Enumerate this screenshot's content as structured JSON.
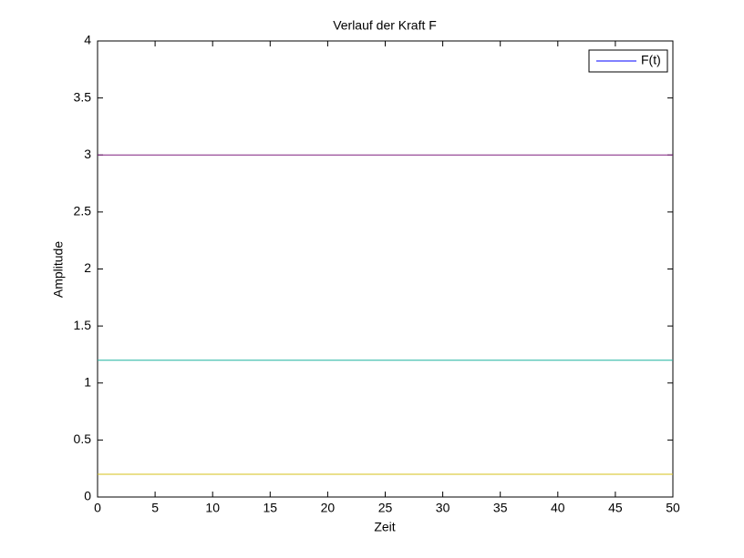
{
  "chart_data": {
    "type": "line",
    "title": "Verlauf der Kraft F",
    "xlabel": "Zeit",
    "ylabel": "Amplitude",
    "series": [
      {
        "color": "#7f1f7f",
        "x": [
          0,
          50
        ],
        "values": [
          3,
          3
        ]
      },
      {
        "color": "#1fb39f",
        "x": [
          0,
          50
        ],
        "values": [
          1.2,
          1.2
        ]
      },
      {
        "color": "#d4c21a",
        "x": [
          0,
          50
        ],
        "values": [
          0.2,
          0.2
        ]
      }
    ],
    "legend": [
      {
        "name": "F(t)",
        "color": "#0000ff"
      }
    ],
    "legend_position": "upper right",
    "xlim": [
      0,
      50
    ],
    "xticks": [
      0,
      5,
      10,
      15,
      20,
      25,
      30,
      35,
      40,
      45,
      50
    ],
    "ylim": [
      0,
      4
    ],
    "yticks": [
      0,
      0.5,
      1,
      1.5,
      2,
      2.5,
      3,
      3.5,
      4
    ],
    "grid": false
  }
}
